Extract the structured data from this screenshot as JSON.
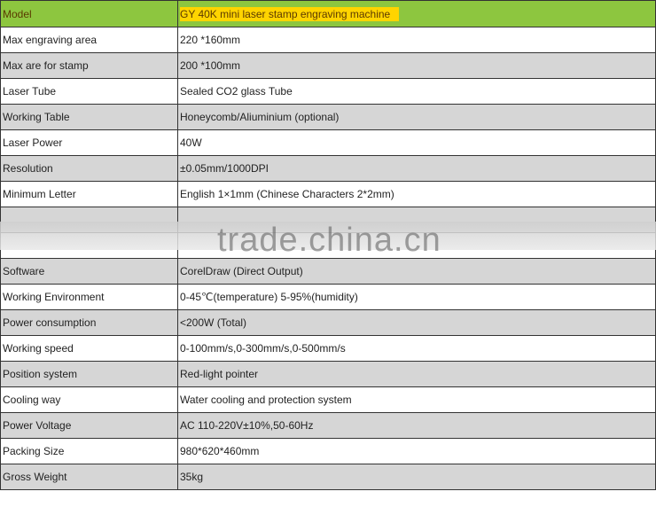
{
  "header": {
    "key": "Model",
    "value": "GY 40K mini laser stamp engraving machine"
  },
  "rows": [
    {
      "key": "Max engraving area",
      "value": "220 *160mm"
    },
    {
      "key": "Max are for stamp",
      "value": "200 *100mm"
    },
    {
      "key": "Laser Tube",
      "value": "Sealed CO2 glass Tube"
    },
    {
      "key": "Working Table",
      "value": "Honeycomb/Aliuminium (optional)"
    },
    {
      "key": "Laser Power",
      "value": "40W"
    },
    {
      "key": "Resolution",
      "value": "±0.05mm/1000DPI"
    },
    {
      "key": "Minimum Letter",
      "value": "English 1×1mm (Chinese Characters 2*2mm)"
    },
    {
      "key": "",
      "value": ""
    },
    {
      "key": "",
      "value": ""
    },
    {
      "key": "Software",
      "value": "CorelDraw (Direct Output)"
    },
    {
      "key": "Working Environment",
      "value": "0-45℃(temperature)      5-95%(humidity)"
    },
    {
      "key": "Power consumption",
      "value": "<200W (Total)"
    },
    {
      "key": "Working speed",
      "value": "0-100mm/s,0-300mm/s,0-500mm/s"
    },
    {
      "key": "Position system",
      "value": "Red-light pointer"
    },
    {
      "key": "Cooling way",
      "value": "Water cooling and protection system"
    },
    {
      "key": "Power Voltage",
      "value": "AC 110-220V±10%,50-60Hz"
    },
    {
      "key": "Packing Size",
      "value": "980*620*460mm"
    },
    {
      "key": "Gross Weight",
      "value": "35kg"
    }
  ],
  "watermark": "trade.china.cn",
  "colors": {
    "header": "#8dc63f",
    "highlight": "#ffd400",
    "alt_row": "#d6d6d6"
  }
}
